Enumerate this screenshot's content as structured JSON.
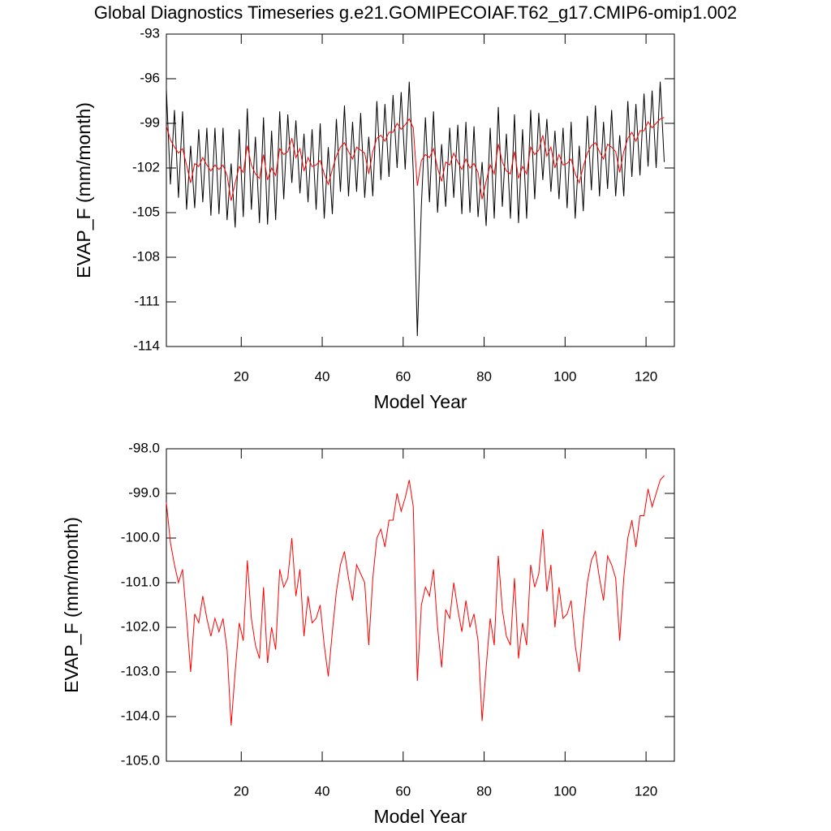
{
  "chart_data": [
    {
      "type": "line",
      "title": "Global Diagnostics Timeseries g.e21.GOMIPECOIAF.T62_g17.CMIP6-omip1.002",
      "x_label": "Model Year",
      "y_label": "EVAP_F (mm/month)",
      "x": [
        1.5,
        2.5,
        3.5,
        4.5,
        5.5,
        6.5,
        7.5,
        8.5,
        9.5,
        10.5,
        11.5,
        12.5,
        13.5,
        14.5,
        15.5,
        16.5,
        17.5,
        18.5,
        19.5,
        20.5,
        21.5,
        22.5,
        23.5,
        24.5,
        25.5,
        26.5,
        27.5,
        28.5,
        29.5,
        30.5,
        31.5,
        32.5,
        33.5,
        34.5,
        35.5,
        36.5,
        37.5,
        38.5,
        39.5,
        40.5,
        41.5,
        42.5,
        43.5,
        44.5,
        45.5,
        46.5,
        47.5,
        48.5,
        49.5,
        50.5,
        51.5,
        52.5,
        53.5,
        54.5,
        55.5,
        56.5,
        57.5,
        58.5,
        59.5,
        60.5,
        61.5,
        62.5,
        63.5,
        64.5,
        65.5,
        66.5,
        67.5,
        68.5,
        69.5,
        70.5,
        71.5,
        72.5,
        73.5,
        74.5,
        75.5,
        76.5,
        77.5,
        78.5,
        79.5,
        80.5,
        81.5,
        82.5,
        83.5,
        84.5,
        85.5,
        86.5,
        87.5,
        88.5,
        89.5,
        90.5,
        91.5,
        92.5,
        93.5,
        94.5,
        95.5,
        96.5,
        97.5,
        98.5,
        99.5,
        100.5,
        101.5,
        102.5,
        103.5,
        104.5,
        105.5,
        106.5,
        107.5,
        108.5,
        109.5,
        110.5,
        111.5,
        112.5,
        113.5,
        114.5,
        115.5,
        116.5,
        117.5,
        118.5,
        119.5,
        120.5,
        121.5,
        122.5,
        123.5,
        124.5
      ],
      "series": [
        {
          "color": "#000000",
          "values": [
            -96.7,
            -103.1,
            -98.1,
            -104.0,
            -98.2,
            -104.8,
            -100.5,
            -104.7,
            -99.4,
            -104.3,
            -99.3,
            -105.2,
            -99.3,
            -105.1,
            -99.3,
            -105.5,
            -101.7,
            -106.0,
            -99.4,
            -105.3,
            -98.0,
            -104.8,
            -99.9,
            -105.7,
            -98.6,
            -105.8,
            -99.5,
            -105.5,
            -98.2,
            -104.1,
            -98.4,
            -103.0,
            -98.8,
            -103.7,
            -99.7,
            -104.3,
            -99.4,
            -104.8,
            -99.0,
            -105.4,
            -100.6,
            -105.1,
            -98.7,
            -103.6,
            -97.8,
            -103.9,
            -98.9,
            -103.6,
            -98.3,
            -104.0,
            -99.9,
            -103.9,
            -97.5,
            -102.8,
            -97.7,
            -102.6,
            -97.1,
            -102.0,
            -96.9,
            -102.1,
            -96.2,
            -102.3,
            -113.3,
            -104.5,
            -98.6,
            -104.3,
            -98.2,
            -105.0,
            -100.4,
            -104.6,
            -99.3,
            -104.0,
            -99.1,
            -105.1,
            -98.9,
            -105.0,
            -99.2,
            -105.3,
            -101.6,
            -105.9,
            -99.3,
            -105.4,
            -97.9,
            -104.6,
            -99.7,
            -105.4,
            -98.4,
            -105.7,
            -99.4,
            -105.4,
            -98.1,
            -104.1,
            -98.3,
            -102.8,
            -98.7,
            -103.6,
            -99.5,
            -104.1,
            -99.3,
            -104.7,
            -98.9,
            -105.4,
            -100.5,
            -104.9,
            -98.5,
            -103.5,
            -97.8,
            -103.9,
            -98.9,
            -103.4,
            -98.1,
            -103.9,
            -99.8,
            -103.9,
            -97.5,
            -102.6,
            -97.7,
            -102.5,
            -97.0,
            -101.9,
            -96.8,
            -102.0,
            -96.2,
            -101.6
          ]
        },
        {
          "color": "#ff0000",
          "values": [
            -99.2,
            -100.1,
            -100.6,
            -101.0,
            -100.7,
            -101.8,
            -103.0,
            -101.7,
            -101.9,
            -101.3,
            -101.8,
            -102.2,
            -101.8,
            -102.1,
            -101.8,
            -102.5,
            -104.2,
            -103.0,
            -101.9,
            -102.3,
            -100.5,
            -101.8,
            -102.4,
            -102.7,
            -101.1,
            -102.8,
            -102.0,
            -102.5,
            -100.7,
            -101.1,
            -100.9,
            -100.0,
            -101.3,
            -100.7,
            -102.2,
            -101.3,
            -101.9,
            -101.8,
            -101.5,
            -102.4,
            -103.1,
            -102.1,
            -101.2,
            -100.6,
            -100.3,
            -100.9,
            -101.4,
            -100.6,
            -100.8,
            -101.0,
            -102.4,
            -100.9,
            -100.0,
            -99.8,
            -100.2,
            -99.6,
            -99.6,
            -99.0,
            -99.4,
            -99.1,
            -98.7,
            -99.3,
            -103.2,
            -101.5,
            -101.1,
            -101.3,
            -100.7,
            -102.0,
            -102.9,
            -101.6,
            -101.8,
            -101.0,
            -101.6,
            -102.1,
            -101.4,
            -102.0,
            -101.7,
            -102.3,
            -104.1,
            -102.9,
            -101.8,
            -102.4,
            -100.4,
            -101.6,
            -102.2,
            -102.4,
            -100.9,
            -102.7,
            -101.9,
            -102.4,
            -100.6,
            -101.1,
            -100.8,
            -99.8,
            -101.2,
            -100.6,
            -102.0,
            -101.1,
            -101.8,
            -101.7,
            -101.4,
            -102.4,
            -103.0,
            -101.9,
            -101.0,
            -100.5,
            -100.3,
            -100.9,
            -101.4,
            -100.4,
            -100.6,
            -100.9,
            -102.3,
            -100.9,
            -100.0,
            -99.6,
            -100.2,
            -99.5,
            -99.5,
            -98.9,
            -99.3,
            -99.0,
            -98.7,
            -98.6
          ]
        }
      ],
      "xlim": [
        1.5,
        127
      ],
      "xticks": [
        20,
        40,
        60,
        80,
        100,
        120
      ],
      "ylim": [
        -114,
        -93
      ],
      "yticks": [
        -114,
        -111,
        -108,
        -105,
        -102,
        -99,
        -96,
        -93
      ]
    },
    {
      "type": "line",
      "x_label": "Model Year",
      "y_label": "EVAP_F (mm/month)",
      "x": [
        1.5,
        2.5,
        3.5,
        4.5,
        5.5,
        6.5,
        7.5,
        8.5,
        9.5,
        10.5,
        11.5,
        12.5,
        13.5,
        14.5,
        15.5,
        16.5,
        17.5,
        18.5,
        19.5,
        20.5,
        21.5,
        22.5,
        23.5,
        24.5,
        25.5,
        26.5,
        27.5,
        28.5,
        29.5,
        30.5,
        31.5,
        32.5,
        33.5,
        34.5,
        35.5,
        36.5,
        37.5,
        38.5,
        39.5,
        40.5,
        41.5,
        42.5,
        43.5,
        44.5,
        45.5,
        46.5,
        47.5,
        48.5,
        49.5,
        50.5,
        51.5,
        52.5,
        53.5,
        54.5,
        55.5,
        56.5,
        57.5,
        58.5,
        59.5,
        60.5,
        61.5,
        62.5,
        63.5,
        64.5,
        65.5,
        66.5,
        67.5,
        68.5,
        69.5,
        70.5,
        71.5,
        72.5,
        73.5,
        74.5,
        75.5,
        76.5,
        77.5,
        78.5,
        79.5,
        80.5,
        81.5,
        82.5,
        83.5,
        84.5,
        85.5,
        86.5,
        87.5,
        88.5,
        89.5,
        90.5,
        91.5,
        92.5,
        93.5,
        94.5,
        95.5,
        96.5,
        97.5,
        98.5,
        99.5,
        100.5,
        101.5,
        102.5,
        103.5,
        104.5,
        105.5,
        106.5,
        107.5,
        108.5,
        109.5,
        110.5,
        111.5,
        112.5,
        113.5,
        114.5,
        115.5,
        116.5,
        117.5,
        118.5,
        119.5,
        120.5,
        121.5,
        122.5,
        123.5,
        124.5
      ],
      "series": [
        {
          "color": "#ff0000",
          "values": [
            -99.2,
            -100.1,
            -100.6,
            -101.0,
            -100.7,
            -101.8,
            -103.0,
            -101.7,
            -101.9,
            -101.3,
            -101.8,
            -102.2,
            -101.8,
            -102.1,
            -101.8,
            -102.5,
            -104.2,
            -103.0,
            -101.9,
            -102.3,
            -100.5,
            -101.8,
            -102.4,
            -102.7,
            -101.1,
            -102.8,
            -102.0,
            -102.5,
            -100.7,
            -101.1,
            -100.9,
            -100.0,
            -101.3,
            -100.7,
            -102.2,
            -101.3,
            -101.9,
            -101.8,
            -101.5,
            -102.4,
            -103.1,
            -102.1,
            -101.2,
            -100.6,
            -100.3,
            -100.9,
            -101.4,
            -100.6,
            -100.8,
            -101.0,
            -102.4,
            -100.9,
            -100.0,
            -99.8,
            -100.2,
            -99.6,
            -99.6,
            -99.0,
            -99.4,
            -99.1,
            -98.7,
            -99.3,
            -103.2,
            -101.5,
            -101.1,
            -101.3,
            -100.7,
            -102.0,
            -102.9,
            -101.6,
            -101.8,
            -101.0,
            -101.6,
            -102.1,
            -101.4,
            -102.0,
            -101.7,
            -102.3,
            -104.1,
            -102.9,
            -101.8,
            -102.4,
            -100.4,
            -101.6,
            -102.2,
            -102.4,
            -100.9,
            -102.7,
            -101.9,
            -102.4,
            -100.6,
            -101.1,
            -100.8,
            -99.8,
            -101.2,
            -100.6,
            -102.0,
            -101.1,
            -101.8,
            -101.7,
            -101.4,
            -102.4,
            -103.0,
            -101.9,
            -101.0,
            -100.5,
            -100.3,
            -100.9,
            -101.4,
            -100.4,
            -100.6,
            -100.9,
            -102.3,
            -100.9,
            -100.0,
            -99.6,
            -100.2,
            -99.5,
            -99.5,
            -98.9,
            -99.3,
            -99.0,
            -98.7,
            -98.6
          ]
        }
      ],
      "xlim": [
        1.5,
        127
      ],
      "xticks": [
        20,
        40,
        60,
        80,
        100,
        120
      ],
      "ylim": [
        -105,
        -98
      ],
      "yticks": [
        {
          "value": -105,
          "label": "-105.0"
        },
        {
          "value": -104,
          "label": "-104.0"
        },
        {
          "value": -103,
          "label": "-103.0"
        },
        {
          "value": -102,
          "label": "-102.0"
        },
        {
          "value": -101,
          "label": "-101.0"
        },
        {
          "value": -100,
          "label": "-100.0"
        },
        {
          "value": -99,
          "label": "-99.0"
        },
        {
          "value": -98,
          "label": "-98.0"
        }
      ]
    }
  ]
}
